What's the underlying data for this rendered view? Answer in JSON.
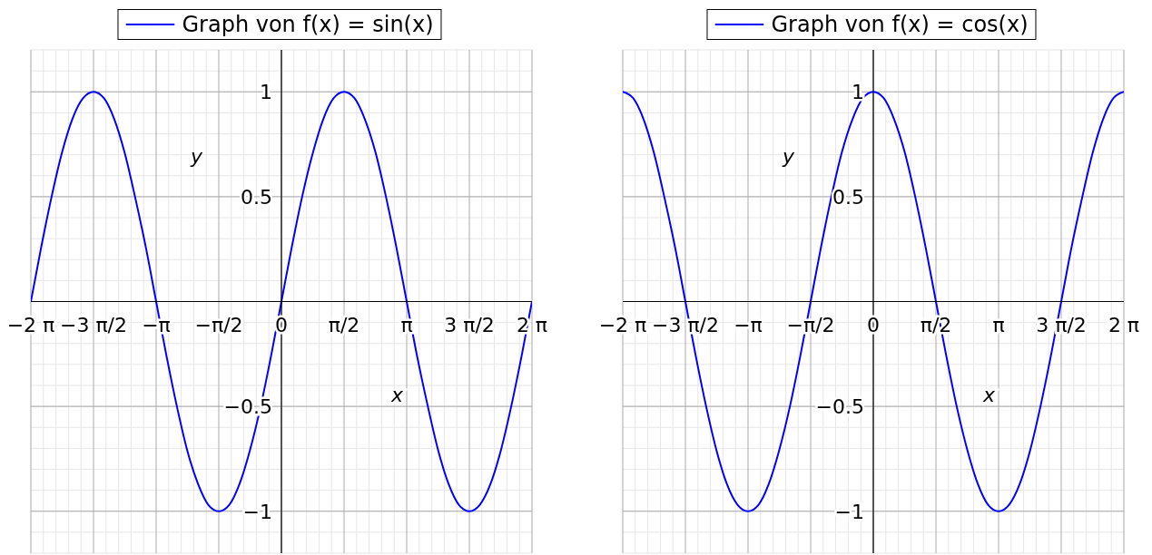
{
  "chart_data": [
    {
      "type": "line",
      "xlabel": "x",
      "ylabel": "y",
      "xlim": [
        -6.28,
        6.28
      ],
      "ylim": [
        -1.2,
        1.2
      ],
      "xticks": [
        {
          "value": -6.28,
          "label": "−2 π"
        },
        {
          "value": -4.71,
          "label": "−3 π/2"
        },
        {
          "value": -3.14,
          "label": "−π"
        },
        {
          "value": -1.57,
          "label": "−π/2"
        },
        {
          "value": 0,
          "label": "0"
        },
        {
          "value": 1.57,
          "label": "π/2"
        },
        {
          "value": 3.14,
          "label": "π"
        },
        {
          "value": 4.71,
          "label": "3 π/2"
        },
        {
          "value": 6.28,
          "label": "2 π"
        }
      ],
      "yticks": [
        -1,
        -0.5,
        0.5,
        1
      ],
      "grid": true,
      "legend": "top",
      "x": [
        -6.28,
        -6.02,
        -5.76,
        -5.5,
        -5.24,
        -4.97,
        -4.71,
        -4.45,
        -4.19,
        -3.93,
        -3.67,
        -3.4,
        -3.14,
        -2.88,
        -2.62,
        -2.36,
        -2.09,
        -1.83,
        -1.57,
        -1.31,
        -1.05,
        -0.79,
        -0.52,
        -0.26,
        0,
        0.26,
        0.52,
        0.79,
        1.05,
        1.31,
        1.57,
        1.83,
        2.09,
        2.36,
        2.62,
        2.88,
        3.14,
        3.4,
        3.67,
        3.93,
        4.19,
        4.45,
        4.71,
        4.97,
        5.24,
        5.5,
        5.76,
        6.02,
        6.28
      ],
      "series": [
        {
          "name": "Graph von f(x) = sin(x)",
          "color": "#0000ff",
          "values": [
            0,
            0.26,
            0.5,
            0.71,
            0.87,
            0.97,
            1,
            0.97,
            0.87,
            0.71,
            0.5,
            0.26,
            0,
            -0.26,
            -0.5,
            -0.71,
            -0.87,
            -0.97,
            -1,
            -0.97,
            -0.87,
            -0.71,
            -0.5,
            -0.26,
            0,
            0.26,
            0.5,
            0.71,
            0.87,
            0.97,
            1,
            0.97,
            0.87,
            0.71,
            0.5,
            0.26,
            0,
            -0.26,
            -0.5,
            -0.71,
            -0.87,
            -0.97,
            -1,
            -0.97,
            -0.87,
            -0.71,
            -0.5,
            -0.26,
            0
          ]
        }
      ]
    },
    {
      "type": "line",
      "xlabel": "x",
      "ylabel": "y",
      "xlim": [
        -6.28,
        6.28
      ],
      "ylim": [
        -1.2,
        1.2
      ],
      "xticks": [
        {
          "value": -6.28,
          "label": "−2 π"
        },
        {
          "value": -4.71,
          "label": "−3 π/2"
        },
        {
          "value": -3.14,
          "label": "−π"
        },
        {
          "value": -1.57,
          "label": "−π/2"
        },
        {
          "value": 0,
          "label": "0"
        },
        {
          "value": 1.57,
          "label": "π/2"
        },
        {
          "value": 3.14,
          "label": "π"
        },
        {
          "value": 4.71,
          "label": "3 π/2"
        },
        {
          "value": 6.28,
          "label": "2 π"
        }
      ],
      "yticks": [
        -1,
        -0.5,
        0.5,
        1
      ],
      "grid": true,
      "legend": "top",
      "x": [
        -6.28,
        -6.02,
        -5.76,
        -5.5,
        -5.24,
        -4.97,
        -4.71,
        -4.45,
        -4.19,
        -3.93,
        -3.67,
        -3.4,
        -3.14,
        -2.88,
        -2.62,
        -2.36,
        -2.09,
        -1.83,
        -1.57,
        -1.31,
        -1.05,
        -0.79,
        -0.52,
        -0.26,
        0,
        0.26,
        0.52,
        0.79,
        1.05,
        1.31,
        1.57,
        1.83,
        2.09,
        2.36,
        2.62,
        2.88,
        3.14,
        3.4,
        3.67,
        3.93,
        4.19,
        4.45,
        4.71,
        4.97,
        5.24,
        5.5,
        5.76,
        6.02,
        6.28
      ],
      "series": [
        {
          "name": "Graph von f(x) = cos(x)",
          "color": "#0000ff",
          "values": [
            1,
            0.97,
            0.87,
            0.71,
            0.5,
            0.26,
            0,
            -0.26,
            -0.5,
            -0.71,
            -0.87,
            -0.97,
            -1,
            -0.97,
            -0.87,
            -0.71,
            -0.5,
            -0.26,
            0,
            0.26,
            0.5,
            0.71,
            0.87,
            0.97,
            1,
            0.97,
            0.87,
            0.71,
            0.5,
            0.26,
            0,
            -0.26,
            -0.5,
            -0.71,
            -0.87,
            -0.97,
            -1,
            -0.97,
            -0.87,
            -0.71,
            -0.5,
            -0.26,
            0,
            0.26,
            0.5,
            0.71,
            0.87,
            0.97,
            1
          ]
        }
      ]
    }
  ]
}
